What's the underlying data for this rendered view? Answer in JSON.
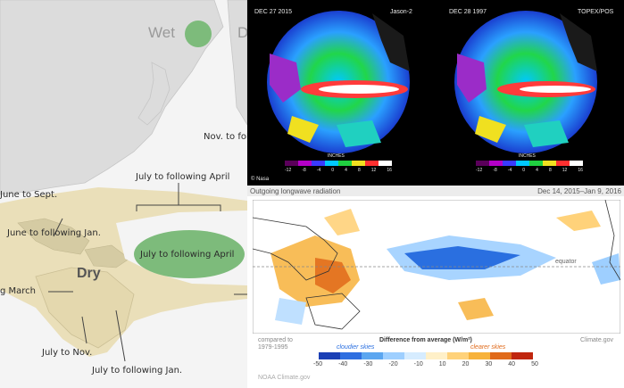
{
  "map": {
    "legend_wet": "Wet",
    "legend_dry_partial": "D",
    "label_dry": "Dry",
    "annotations": [
      "Nov. to fol",
      "July to following April",
      "June to Sept.",
      "June to following Jan.",
      "July to following April",
      "g March",
      "July to Nov.",
      "July to following Jan."
    ],
    "colors": {
      "wet": "#7dbb7b",
      "dry": "#e9ddb5",
      "land": "#d9d9d9",
      "ocean": "#f4f4f4"
    }
  },
  "globes": {
    "left": {
      "date": "DEC 27 2015",
      "mission": "Jason-2"
    },
    "right": {
      "date": "DEC 28 1997",
      "mission": "TOPEX/POS"
    },
    "credit": "© Nasa",
    "units": "INCHES",
    "tick_labels": [
      "-12",
      "-8",
      "-4",
      "0",
      "4",
      "8",
      "12",
      "16"
    ]
  },
  "olr": {
    "title": "Outgoing longwave radiation",
    "date_range": "Dec 14, 2015–Jan 9, 2016",
    "equator_label": "equator",
    "compared_to": "compared to",
    "baseline": "1979-1995",
    "legend_title": "Difference from average (W/m²)",
    "cloudier": "cloudier skies",
    "clearer": "clearer skies",
    "ticks": [
      "-50",
      "-40",
      "-30",
      "-20",
      "-10",
      "10",
      "20",
      "30",
      "40",
      "50"
    ],
    "credit": "Climate.gov",
    "source": "NOAA Climate.gov"
  }
}
